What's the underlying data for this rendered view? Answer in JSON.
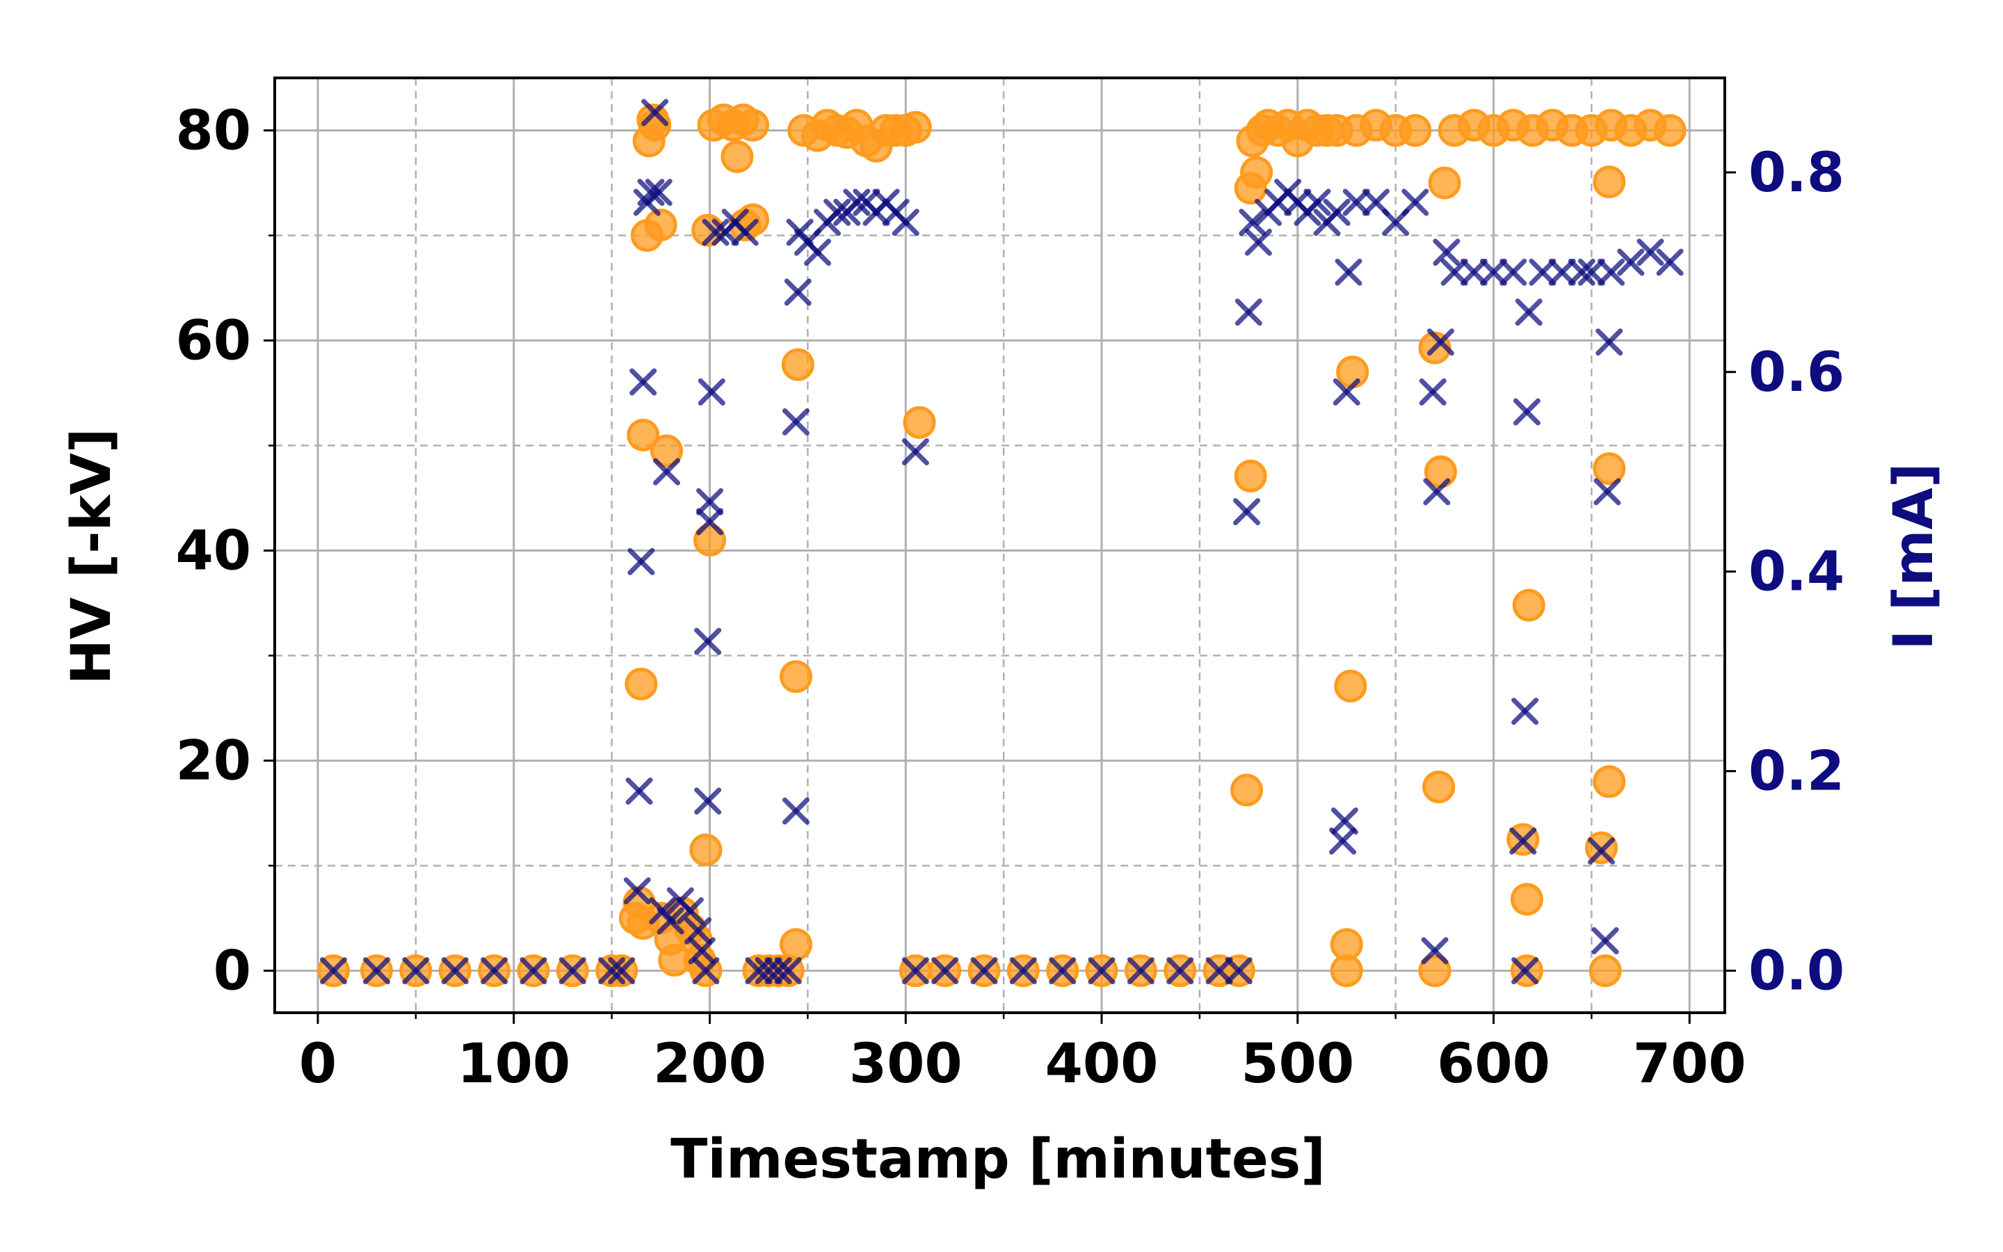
{
  "chart_data": {
    "type": "scatter",
    "title": "",
    "xlabel": "Timestamp [minutes]",
    "ylabel": "HV [-kV]",
    "y2label": "I [mA]",
    "xlim": [
      -22,
      718
    ],
    "ylim": [
      -4,
      85
    ],
    "y2lim": [
      -0.0421,
      0.8947
    ],
    "grid": true,
    "legend": "none",
    "x_ticks": [
      0,
      100,
      200,
      300,
      400,
      500,
      600,
      700
    ],
    "x_minor_ticks": [
      50,
      150,
      250,
      350,
      450,
      550,
      650
    ],
    "y_ticks": [
      0,
      20,
      40,
      60,
      80
    ],
    "y_minor_ticks": [
      10,
      30,
      50,
      70
    ],
    "y2_ticks": [
      0.0,
      0.2,
      0.4,
      0.6,
      0.8
    ],
    "y2_tick_labels": [
      "0.0",
      "0.2",
      "0.4",
      "0.6",
      "0.8"
    ],
    "colors": {
      "hv": "#ff9b1e",
      "current": "#0d0d80",
      "right_axis": "#0d0d80"
    },
    "series": [
      {
        "axis": "left",
        "marker": "circle",
        "points": [
          [
            8,
            0
          ],
          [
            30,
            0
          ],
          [
            50,
            0
          ],
          [
            70,
            0
          ],
          [
            90,
            0
          ],
          [
            110,
            0
          ],
          [
            130,
            0
          ],
          [
            150,
            0
          ],
          [
            155,
            0
          ],
          [
            162,
            5
          ],
          [
            164,
            6.5
          ],
          [
            166,
            4.5
          ],
          [
            165,
            27.3
          ],
          [
            166,
            51
          ],
          [
            168,
            70
          ],
          [
            169,
            79
          ],
          [
            171,
            81
          ],
          [
            172,
            80.5
          ],
          [
            175,
            71
          ],
          [
            175,
            5
          ],
          [
            178,
            49.5
          ],
          [
            180,
            3
          ],
          [
            182,
            1
          ],
          [
            186,
            5.5
          ],
          [
            190,
            4
          ],
          [
            193,
            3
          ],
          [
            195,
            1
          ],
          [
            198,
            0
          ],
          [
            200,
            41
          ],
          [
            198,
            11.5
          ],
          [
            199,
            70.5
          ],
          [
            202,
            80.5
          ],
          [
            207,
            81
          ],
          [
            212,
            80.5
          ],
          [
            214,
            77.5
          ],
          [
            217,
            81
          ],
          [
            222,
            80.5
          ],
          [
            218,
            71
          ],
          [
            222,
            71.5
          ],
          [
            225,
            0
          ],
          [
            230,
            0
          ],
          [
            235,
            0
          ],
          [
            240,
            0
          ],
          [
            244,
            2.5
          ],
          [
            244,
            28
          ],
          [
            245,
            57.7
          ],
          [
            248,
            80
          ],
          [
            255,
            79.5
          ],
          [
            260,
            80.5
          ],
          [
            265,
            80
          ],
          [
            270,
            79.8
          ],
          [
            275,
            80.5
          ],
          [
            280,
            79
          ],
          [
            285,
            78.5
          ],
          [
            290,
            80
          ],
          [
            295,
            80
          ],
          [
            300,
            80
          ],
          [
            305,
            80.3
          ],
          [
            307,
            52.2
          ],
          [
            305,
            0
          ],
          [
            320,
            0
          ],
          [
            340,
            0
          ],
          [
            360,
            0
          ],
          [
            380,
            0
          ],
          [
            400,
            0
          ],
          [
            420,
            0
          ],
          [
            440,
            0
          ],
          [
            460,
            0
          ],
          [
            470,
            0
          ],
          [
            474,
            17.2
          ],
          [
            476,
            47.1
          ],
          [
            476,
            74.5
          ],
          [
            477,
            79
          ],
          [
            479,
            76
          ],
          [
            482,
            80
          ],
          [
            485,
            80.5
          ],
          [
            490,
            80
          ],
          [
            495,
            80.5
          ],
          [
            500,
            79
          ],
          [
            505,
            80.5
          ],
          [
            510,
            80
          ],
          [
            515,
            80
          ],
          [
            520,
            80
          ],
          [
            525,
            0
          ],
          [
            525,
            2.5
          ],
          [
            527,
            27.1
          ],
          [
            528,
            57
          ],
          [
            530,
            80
          ],
          [
            540,
            80.5
          ],
          [
            550,
            80
          ],
          [
            560,
            80
          ],
          [
            570,
            0
          ],
          [
            570,
            59.3
          ],
          [
            572,
            17.5
          ],
          [
            573,
            47.5
          ],
          [
            575,
            75
          ],
          [
            580,
            80
          ],
          [
            590,
            80.5
          ],
          [
            600,
            80
          ],
          [
            610,
            80.5
          ],
          [
            615,
            12.5
          ],
          [
            617,
            0
          ],
          [
            617,
            6.8
          ],
          [
            618,
            34.8
          ],
          [
            620,
            80
          ],
          [
            630,
            80.5
          ],
          [
            640,
            80
          ],
          [
            650,
            80
          ],
          [
            655,
            11.7
          ],
          [
            657,
            0
          ],
          [
            659,
            18
          ],
          [
            659,
            47.8
          ],
          [
            659,
            75.1
          ],
          [
            660,
            80.5
          ],
          [
            670,
            80
          ],
          [
            680,
            80.5
          ],
          [
            690,
            80
          ]
        ]
      },
      {
        "axis": "right",
        "marker": "x",
        "points": [
          [
            8,
            0
          ],
          [
            30,
            0
          ],
          [
            50,
            0
          ],
          [
            70,
            0
          ],
          [
            90,
            0
          ],
          [
            110,
            0
          ],
          [
            130,
            0
          ],
          [
            150,
            0
          ],
          [
            155,
            0
          ],
          [
            163,
            0.08
          ],
          [
            164,
            0.18
          ],
          [
            165,
            0.41
          ],
          [
            166,
            0.59
          ],
          [
            168,
            0.77
          ],
          [
            170,
            0.78
          ],
          [
            172,
            0.86
          ],
          [
            174,
            0.78
          ],
          [
            176,
            0.06
          ],
          [
            178,
            0.5
          ],
          [
            180,
            0.05
          ],
          [
            185,
            0.07
          ],
          [
            190,
            0.06
          ],
          [
            194,
            0.04
          ],
          [
            196,
            0.02
          ],
          [
            198,
            0
          ],
          [
            199,
            0.17
          ],
          [
            199,
            0.33
          ],
          [
            200,
            0.45
          ],
          [
            200,
            0.47
          ],
          [
            201,
            0.58
          ],
          [
            203,
            0.74
          ],
          [
            208,
            0.74
          ],
          [
            213,
            0.75
          ],
          [
            218,
            0.74
          ],
          [
            225,
            0
          ],
          [
            230,
            0
          ],
          [
            235,
            0
          ],
          [
            240,
            0
          ],
          [
            244,
            0.16
          ],
          [
            244,
            0.55
          ],
          [
            245,
            0.68
          ],
          [
            246,
            0.74
          ],
          [
            250,
            0.73
          ],
          [
            255,
            0.72
          ],
          [
            260,
            0.75
          ],
          [
            265,
            0.76
          ],
          [
            270,
            0.76
          ],
          [
            275,
            0.77
          ],
          [
            280,
            0.77
          ],
          [
            285,
            0.76
          ],
          [
            290,
            0.77
          ],
          [
            295,
            0.76
          ],
          [
            300,
            0.75
          ],
          [
            305,
            0.52
          ],
          [
            305,
            0
          ],
          [
            320,
            0
          ],
          [
            340,
            0
          ],
          [
            360,
            0
          ],
          [
            380,
            0
          ],
          [
            400,
            0
          ],
          [
            420,
            0
          ],
          [
            440,
            0
          ],
          [
            460,
            0
          ],
          [
            470,
            0
          ],
          [
            474,
            0.46
          ],
          [
            475,
            0.66
          ],
          [
            477,
            0.75
          ],
          [
            480,
            0.73
          ],
          [
            485,
            0.76
          ],
          [
            490,
            0.77
          ],
          [
            495,
            0.78
          ],
          [
            500,
            0.77
          ],
          [
            505,
            0.76
          ],
          [
            510,
            0.77
          ],
          [
            515,
            0.75
          ],
          [
            520,
            0.76
          ],
          [
            523,
            0.13
          ],
          [
            524,
            0.15
          ],
          [
            525,
            0.58
          ],
          [
            526,
            0.7
          ],
          [
            530,
            0.77
          ],
          [
            540,
            0.77
          ],
          [
            550,
            0.75
          ],
          [
            560,
            0.77
          ],
          [
            569,
            0.58
          ],
          [
            570,
            0.02
          ],
          [
            571,
            0.48
          ],
          [
            573,
            0.63
          ],
          [
            576,
            0.72
          ],
          [
            580,
            0.7
          ],
          [
            590,
            0.7
          ],
          [
            600,
            0.7
          ],
          [
            610,
            0.7
          ],
          [
            615,
            0.13
          ],
          [
            616,
            0
          ],
          [
            616,
            0.26
          ],
          [
            617,
            0.56
          ],
          [
            618,
            0.66
          ],
          [
            625,
            0.7
          ],
          [
            635,
            0.7
          ],
          [
            645,
            0.7
          ],
          [
            650,
            0.7
          ],
          [
            655,
            0.12
          ],
          [
            657,
            0.03
          ],
          [
            658,
            0.48
          ],
          [
            659,
            0.63
          ],
          [
            660,
            0.7
          ],
          [
            670,
            0.71
          ],
          [
            680,
            0.72
          ],
          [
            690,
            0.71
          ]
        ]
      }
    ]
  }
}
